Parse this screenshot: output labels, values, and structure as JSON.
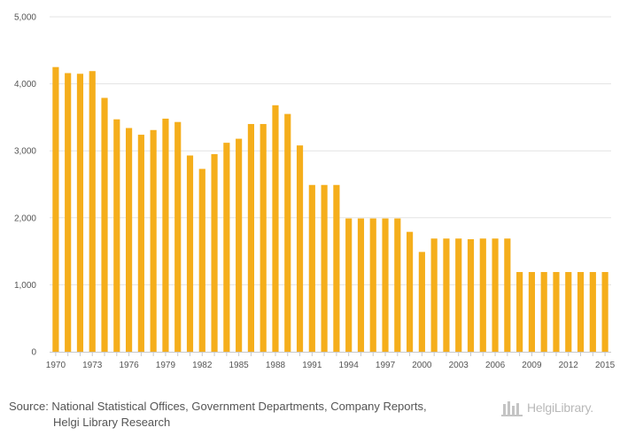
{
  "chart_data": {
    "type": "bar",
    "title": "",
    "xlabel": "",
    "ylabel": "",
    "ylim": [
      0,
      5000
    ],
    "y_ticks": [
      "0",
      "1,000",
      "2,000",
      "3,000",
      "4,000",
      "5,000"
    ],
    "y_tick_values": [
      0,
      1000,
      2000,
      3000,
      4000,
      5000
    ],
    "bar_color": "#f5ae1b",
    "categories": [
      "1970",
      "1971",
      "1972",
      "1973",
      "1974",
      "1975",
      "1976",
      "1977",
      "1978",
      "1979",
      "1980",
      "1981",
      "1982",
      "1983",
      "1984",
      "1985",
      "1986",
      "1987",
      "1988",
      "1989",
      "1990",
      "1991",
      "1992",
      "1993",
      "1994",
      "1995",
      "1996",
      "1997",
      "1998",
      "1999",
      "2000",
      "2001",
      "2002",
      "2003",
      "2004",
      "2005",
      "2006",
      "2007",
      "2008",
      "2009",
      "2010",
      "2011",
      "2012",
      "2013",
      "2014",
      "2015"
    ],
    "x_tick_labels": [
      "1970",
      "1973",
      "1976",
      "1979",
      "1982",
      "1985",
      "1988",
      "1991",
      "1994",
      "1997",
      "2000",
      "2003",
      "2006",
      "2009",
      "2012",
      "2015"
    ],
    "values": [
      4250,
      4160,
      4150,
      4190,
      3790,
      3470,
      3340,
      3240,
      3310,
      3480,
      3430,
      2930,
      2730,
      2950,
      3120,
      3180,
      3400,
      3400,
      3680,
      3550,
      3080,
      2490,
      2490,
      2490,
      1990,
      1990,
      1990,
      1990,
      1990,
      1790,
      1490,
      1690,
      1690,
      1690,
      1680,
      1690,
      1690,
      1690,
      1190,
      1190,
      1190,
      1190,
      1190,
      1190,
      1190,
      1190
    ]
  },
  "footer": {
    "source_line1": "Source: National Statistical Offices, Government Departments, Company Reports,",
    "source_line2": "Helgi Library Research",
    "logo_text": "HelgiLibrary."
  }
}
